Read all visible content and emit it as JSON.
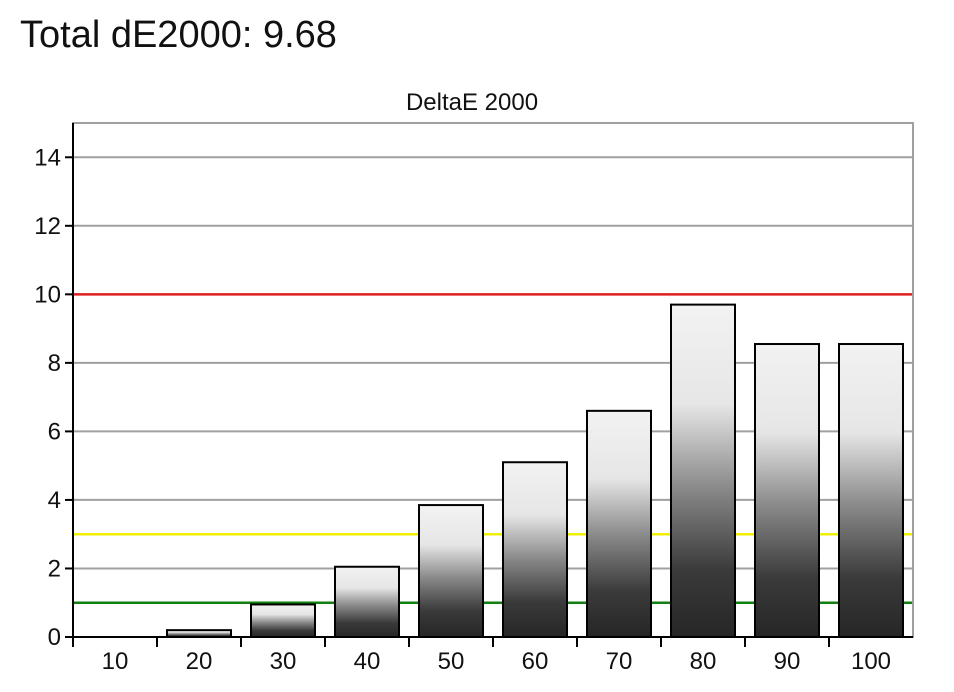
{
  "page": {
    "heading": "Total dE2000: 9.68"
  },
  "chart_data": {
    "type": "bar",
    "title": "DeltaE 2000",
    "xlabel": "",
    "ylabel": "",
    "categories": [
      "10",
      "20",
      "30",
      "40",
      "50",
      "60",
      "70",
      "80",
      "90",
      "100"
    ],
    "values": [
      0.0,
      0.2,
      0.95,
      2.05,
      3.85,
      5.1,
      6.6,
      9.7,
      8.55,
      8.55
    ],
    "ylim": [
      0,
      15
    ],
    "yticks": [
      0,
      2,
      4,
      6,
      8,
      10,
      12,
      14
    ],
    "grid": true,
    "legend": "none",
    "reference_lines": [
      {
        "value": 10,
        "color": "#e02020"
      },
      {
        "value": 3,
        "color": "#f0f000"
      },
      {
        "value": 1,
        "color": "#108010"
      }
    ],
    "colors": {
      "plot_border": "#a0a0a0",
      "gridline": "#a0a0a0",
      "bar_outline": "#000000",
      "bar_light": "#f2f2f2",
      "bar_dark": "#2a2a2a"
    }
  }
}
